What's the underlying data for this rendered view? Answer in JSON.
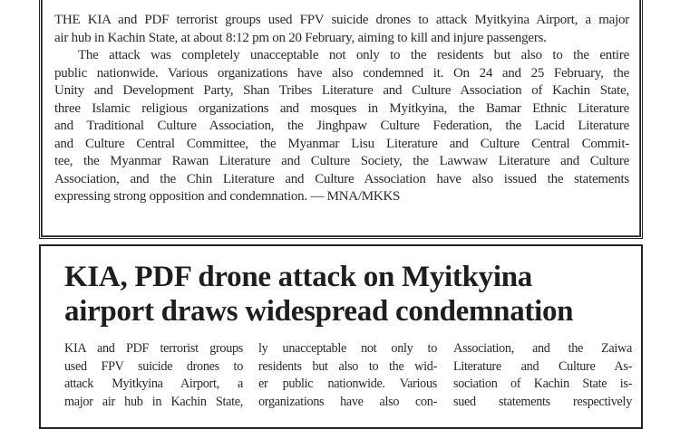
{
  "brief": {
    "lines": [
      "THE KIA and PDF terrorist groups used FPV suicide drones to attack Myitkyina Airport, a major",
      "air hub in Kachin State, at about 8:12 pm on 20 February, aiming to kill and injure passengers.",
      "The attack was completely unacceptable not only to the residents but also to the entire",
      "public nationwide. Various organizations have also condemned it. On 24 and 25 February, the",
      "Unity and Development Party, Shan Tribes Literature and Culture Association of Kachin State,",
      "three Islamic religious organizations and mosques in Myitkyina, the Bamar Ethnic Literature",
      "and Traditional Culture Association, the Jinghpaw Culture Federation, the Lacid Literature",
      "and Culture Central Committee, the Myanmar Lisu Literature and Culture Central Commit-",
      "tee, the Myanmar Rawan Literature and Culture Society, the Lawwaw Literature and Culture",
      "Association, and the Chin Literature and Culture Association have also issued the statements",
      "expressing strong opposition and condemnation. — MNA/MKKS"
    ]
  },
  "article": {
    "headline": [
      "KIA, PDF drone attack on Myitkyina",
      "airport draws widespread condemnation"
    ],
    "columns": [
      [
        "KIA and PDF terrorist groups",
        "used FPV suicide drones to",
        "attack Myitkyina Airport, a",
        "major air hub in Kachin State,"
      ],
      [
        "ly unacceptable not only to",
        "residents but also to the wid-",
        "er public nationwide. Various",
        "organizations have also con-"
      ],
      [
        "Association, and the Zaiwa",
        "Literature and Culture As-",
        "sociation of Kachin State is-",
        "sued statements respectively"
      ]
    ]
  }
}
